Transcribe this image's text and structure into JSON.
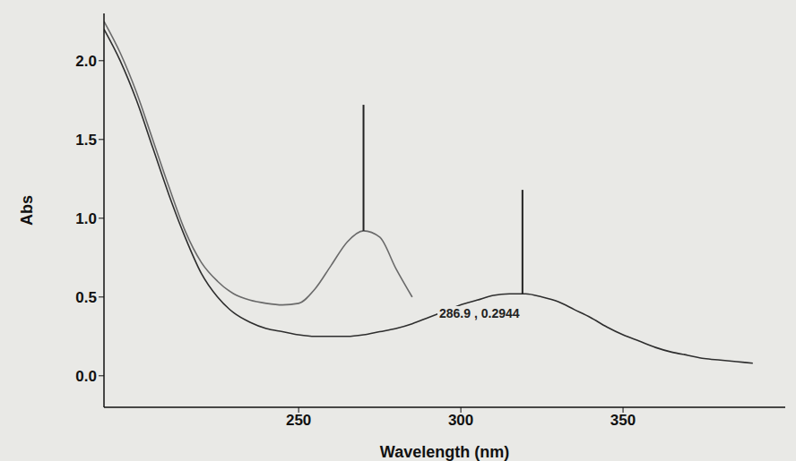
{
  "chart_data": {
    "type": "line",
    "x_label": "Wavelength (nm)",
    "y_label": "Abs",
    "x": [
      190,
      195,
      200,
      205,
      210,
      215,
      220,
      225,
      230,
      235,
      240,
      245,
      250,
      255,
      260,
      265,
      270,
      275,
      280,
      285,
      290,
      295,
      300,
      305,
      310,
      315,
      320,
      325,
      330,
      335,
      340,
      345,
      350,
      355,
      360,
      365,
      370,
      375,
      380,
      385,
      390
    ],
    "series": [
      {
        "color": "#6a6a6a",
        "values": [
          2.25,
          2.05,
          1.8,
          1.5,
          1.2,
          0.92,
          0.72,
          0.6,
          0.52,
          0.48,
          0.46,
          0.45,
          0.46,
          0.55,
          0.7,
          0.85,
          0.92,
          0.88,
          0.68,
          0.5,
          null,
          null,
          null,
          null,
          null,
          null,
          null,
          null,
          null,
          null,
          null,
          null,
          null,
          null,
          null,
          null,
          null,
          null,
          null,
          null,
          null
        ]
      },
      {
        "color": "#2e2e2e",
        "values": [
          2.2,
          2.0,
          1.75,
          1.45,
          1.15,
          0.88,
          0.65,
          0.5,
          0.4,
          0.34,
          0.3,
          0.28,
          0.26,
          0.25,
          0.25,
          0.25,
          0.26,
          0.28,
          0.3,
          0.33,
          0.37,
          0.41,
          0.45,
          0.48,
          0.51,
          0.52,
          0.52,
          0.5,
          0.47,
          0.42,
          0.37,
          0.31,
          0.26,
          0.22,
          0.18,
          0.15,
          0.13,
          0.11,
          0.1,
          0.09,
          0.08
        ]
      }
    ],
    "peaks": [
      {
        "x": 270,
        "y": 0.92,
        "top": 1.72
      },
      {
        "x": 319,
        "y": 0.52,
        "top": 1.18
      }
    ],
    "annotations": [
      "286.9 , 0.2944"
    ],
    "xlim": [
      190,
      400
    ],
    "ylim": [
      -0.2,
      2.3
    ],
    "xticks": [
      250,
      300,
      350
    ],
    "yticks": [
      {
        "value": 0,
        "label": "0.0"
      },
      {
        "value": 0.5,
        "label": "0.5"
      },
      {
        "value": 1,
        "label": "1.0"
      },
      {
        "value": 1.5,
        "label": "1.5"
      },
      {
        "value": 2,
        "label": "2.0"
      }
    ],
    "grid": false
  }
}
